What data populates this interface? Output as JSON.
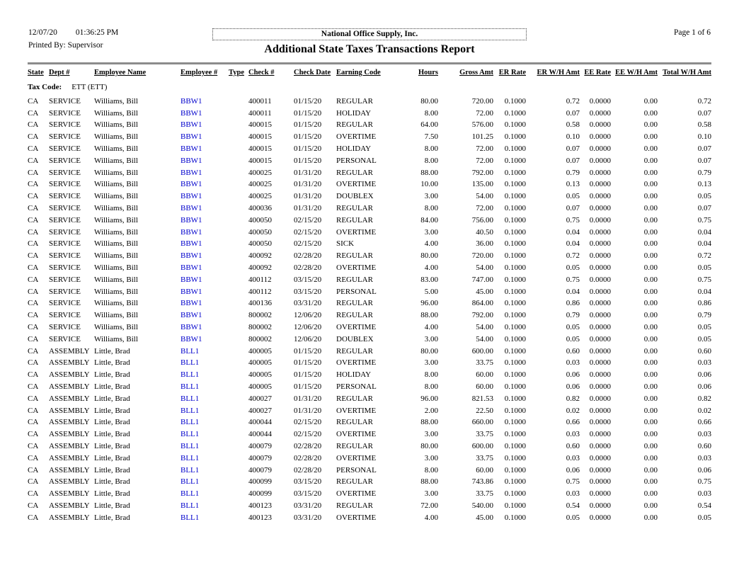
{
  "header": {
    "date": "12/07/20",
    "time": "01:36:25 PM",
    "printed_by_label": "Printed By:",
    "printed_by_value": "Supervisor",
    "company": "National Office Supply, Inc.",
    "title": "Additional State Taxes Transactions Report",
    "page": "Page 1 of 6"
  },
  "colors": {
    "employee_link_blue": "#0000cc",
    "rule_gray": "#8c8c8c"
  },
  "table": {
    "tax_code_label": "Tax Code:",
    "tax_code_value": "ETT (ETT)",
    "columns": [
      "State",
      "Dept #",
      "Employee Name",
      "Employee #",
      "Type",
      "Check #",
      "Check Date",
      "Earning Code",
      "Hours",
      "Gross Amt",
      "ER Rate",
      "ER W/H Amt",
      "EE Rate",
      "EE W/H Amt",
      "Total W/H Amt"
    ],
    "alignments": [
      "l",
      "l",
      "l",
      "l",
      "l",
      "l",
      "l",
      "l",
      "r",
      "r",
      "r",
      "r",
      "r",
      "r",
      "r"
    ],
    "rows": [
      [
        "CA",
        "SERVICE",
        "Williams, Bill",
        "BBW1",
        "",
        "400011",
        "01/15/20",
        "REGULAR",
        "80.00",
        "720.00",
        "0.1000",
        "0.72",
        "0.0000",
        "0.00",
        "0.72"
      ],
      [
        "CA",
        "SERVICE",
        "Williams, Bill",
        "BBW1",
        "",
        "400011",
        "01/15/20",
        "HOLIDAY",
        "8.00",
        "72.00",
        "0.1000",
        "0.07",
        "0.0000",
        "0.00",
        "0.07"
      ],
      [
        "CA",
        "SERVICE",
        "Williams, Bill",
        "BBW1",
        "",
        "400015",
        "01/15/20",
        "REGULAR",
        "64.00",
        "576.00",
        "0.1000",
        "0.58",
        "0.0000",
        "0.00",
        "0.58"
      ],
      [
        "CA",
        "SERVICE",
        "Williams, Bill",
        "BBW1",
        "",
        "400015",
        "01/15/20",
        "OVERTIME",
        "7.50",
        "101.25",
        "0.1000",
        "0.10",
        "0.0000",
        "0.00",
        "0.10"
      ],
      [
        "CA",
        "SERVICE",
        "Williams, Bill",
        "BBW1",
        "",
        "400015",
        "01/15/20",
        "HOLIDAY",
        "8.00",
        "72.00",
        "0.1000",
        "0.07",
        "0.0000",
        "0.00",
        "0.07"
      ],
      [
        "CA",
        "SERVICE",
        "Williams, Bill",
        "BBW1",
        "",
        "400015",
        "01/15/20",
        "PERSONAL",
        "8.00",
        "72.00",
        "0.1000",
        "0.07",
        "0.0000",
        "0.00",
        "0.07"
      ],
      [
        "CA",
        "SERVICE",
        "Williams, Bill",
        "BBW1",
        "",
        "400025",
        "01/31/20",
        "REGULAR",
        "88.00",
        "792.00",
        "0.1000",
        "0.79",
        "0.0000",
        "0.00",
        "0.79"
      ],
      [
        "CA",
        "SERVICE",
        "Williams, Bill",
        "BBW1",
        "",
        "400025",
        "01/31/20",
        "OVERTIME",
        "10.00",
        "135.00",
        "0.1000",
        "0.13",
        "0.0000",
        "0.00",
        "0.13"
      ],
      [
        "CA",
        "SERVICE",
        "Williams, Bill",
        "BBW1",
        "",
        "400025",
        "01/31/20",
        "DOUBLEX",
        "3.00",
        "54.00",
        "0.1000",
        "0.05",
        "0.0000",
        "0.00",
        "0.05"
      ],
      [
        "CA",
        "SERVICE",
        "Williams, Bill",
        "BBW1",
        "",
        "400036",
        "01/31/20",
        "REGULAR",
        "8.00",
        "72.00",
        "0.1000",
        "0.07",
        "0.0000",
        "0.00",
        "0.07"
      ],
      [
        "CA",
        "SERVICE",
        "Williams, Bill",
        "BBW1",
        "",
        "400050",
        "02/15/20",
        "REGULAR",
        "84.00",
        "756.00",
        "0.1000",
        "0.75",
        "0.0000",
        "0.00",
        "0.75"
      ],
      [
        "CA",
        "SERVICE",
        "Williams, Bill",
        "BBW1",
        "",
        "400050",
        "02/15/20",
        "OVERTIME",
        "3.00",
        "40.50",
        "0.1000",
        "0.04",
        "0.0000",
        "0.00",
        "0.04"
      ],
      [
        "CA",
        "SERVICE",
        "Williams, Bill",
        "BBW1",
        "",
        "400050",
        "02/15/20",
        "SICK",
        "4.00",
        "36.00",
        "0.1000",
        "0.04",
        "0.0000",
        "0.00",
        "0.04"
      ],
      [
        "CA",
        "SERVICE",
        "Williams, Bill",
        "BBW1",
        "",
        "400092",
        "02/28/20",
        "REGULAR",
        "80.00",
        "720.00",
        "0.1000",
        "0.72",
        "0.0000",
        "0.00",
        "0.72"
      ],
      [
        "CA",
        "SERVICE",
        "Williams, Bill",
        "BBW1",
        "",
        "400092",
        "02/28/20",
        "OVERTIME",
        "4.00",
        "54.00",
        "0.1000",
        "0.05",
        "0.0000",
        "0.00",
        "0.05"
      ],
      [
        "CA",
        "SERVICE",
        "Williams, Bill",
        "BBW1",
        "",
        "400112",
        "03/15/20",
        "REGULAR",
        "83.00",
        "747.00",
        "0.1000",
        "0.75",
        "0.0000",
        "0.00",
        "0.75"
      ],
      [
        "CA",
        "SERVICE",
        "Williams, Bill",
        "BBW1",
        "",
        "400112",
        "03/15/20",
        "PERSONAL",
        "5.00",
        "45.00",
        "0.1000",
        "0.04",
        "0.0000",
        "0.00",
        "0.04"
      ],
      [
        "CA",
        "SERVICE",
        "Williams, Bill",
        "BBW1",
        "",
        "400136",
        "03/31/20",
        "REGULAR",
        "96.00",
        "864.00",
        "0.1000",
        "0.86",
        "0.0000",
        "0.00",
        "0.86"
      ],
      [
        "CA",
        "SERVICE",
        "Williams, Bill",
        "BBW1",
        "",
        "800002",
        "12/06/20",
        "REGULAR",
        "88.00",
        "792.00",
        "0.1000",
        "0.79",
        "0.0000",
        "0.00",
        "0.79"
      ],
      [
        "CA",
        "SERVICE",
        "Williams, Bill",
        "BBW1",
        "",
        "800002",
        "12/06/20",
        "OVERTIME",
        "4.00",
        "54.00",
        "0.1000",
        "0.05",
        "0.0000",
        "0.00",
        "0.05"
      ],
      [
        "CA",
        "SERVICE",
        "Williams, Bill",
        "BBW1",
        "",
        "800002",
        "12/06/20",
        "DOUBLEX",
        "3.00",
        "54.00",
        "0.1000",
        "0.05",
        "0.0000",
        "0.00",
        "0.05"
      ],
      [
        "CA",
        "ASSEMBLY",
        "Little, Brad",
        "BLL1",
        "",
        "400005",
        "01/15/20",
        "REGULAR",
        "80.00",
        "600.00",
        "0.1000",
        "0.60",
        "0.0000",
        "0.00",
        "0.60"
      ],
      [
        "CA",
        "ASSEMBLY",
        "Little, Brad",
        "BLL1",
        "",
        "400005",
        "01/15/20",
        "OVERTIME",
        "3.00",
        "33.75",
        "0.1000",
        "0.03",
        "0.0000",
        "0.00",
        "0.03"
      ],
      [
        "CA",
        "ASSEMBLY",
        "Little, Brad",
        "BLL1",
        "",
        "400005",
        "01/15/20",
        "HOLIDAY",
        "8.00",
        "60.00",
        "0.1000",
        "0.06",
        "0.0000",
        "0.00",
        "0.06"
      ],
      [
        "CA",
        "ASSEMBLY",
        "Little, Brad",
        "BLL1",
        "",
        "400005",
        "01/15/20",
        "PERSONAL",
        "8.00",
        "60.00",
        "0.1000",
        "0.06",
        "0.0000",
        "0.00",
        "0.06"
      ],
      [
        "CA",
        "ASSEMBLY",
        "Little, Brad",
        "BLL1",
        "",
        "400027",
        "01/31/20",
        "REGULAR",
        "96.00",
        "821.53",
        "0.1000",
        "0.82",
        "0.0000",
        "0.00",
        "0.82"
      ],
      [
        "CA",
        "ASSEMBLY",
        "Little, Brad",
        "BLL1",
        "",
        "400027",
        "01/31/20",
        "OVERTIME",
        "2.00",
        "22.50",
        "0.1000",
        "0.02",
        "0.0000",
        "0.00",
        "0.02"
      ],
      [
        "CA",
        "ASSEMBLY",
        "Little, Brad",
        "BLL1",
        "",
        "400044",
        "02/15/20",
        "REGULAR",
        "88.00",
        "660.00",
        "0.1000",
        "0.66",
        "0.0000",
        "0.00",
        "0.66"
      ],
      [
        "CA",
        "ASSEMBLY",
        "Little, Brad",
        "BLL1",
        "",
        "400044",
        "02/15/20",
        "OVERTIME",
        "3.00",
        "33.75",
        "0.1000",
        "0.03",
        "0.0000",
        "0.00",
        "0.03"
      ],
      [
        "CA",
        "ASSEMBLY",
        "Little, Brad",
        "BLL1",
        "",
        "400079",
        "02/28/20",
        "REGULAR",
        "80.00",
        "600.00",
        "0.1000",
        "0.60",
        "0.0000",
        "0.00",
        "0.60"
      ],
      [
        "CA",
        "ASSEMBLY",
        "Little, Brad",
        "BLL1",
        "",
        "400079",
        "02/28/20",
        "OVERTIME",
        "3.00",
        "33.75",
        "0.1000",
        "0.03",
        "0.0000",
        "0.00",
        "0.03"
      ],
      [
        "CA",
        "ASSEMBLY",
        "Little, Brad",
        "BLL1",
        "",
        "400079",
        "02/28/20",
        "PERSONAL",
        "8.00",
        "60.00",
        "0.1000",
        "0.06",
        "0.0000",
        "0.00",
        "0.06"
      ],
      [
        "CA",
        "ASSEMBLY",
        "Little, Brad",
        "BLL1",
        "",
        "400099",
        "03/15/20",
        "REGULAR",
        "88.00",
        "743.86",
        "0.1000",
        "0.75",
        "0.0000",
        "0.00",
        "0.75"
      ],
      [
        "CA",
        "ASSEMBLY",
        "Little, Brad",
        "BLL1",
        "",
        "400099",
        "03/15/20",
        "OVERTIME",
        "3.00",
        "33.75",
        "0.1000",
        "0.03",
        "0.0000",
        "0.00",
        "0.03"
      ],
      [
        "CA",
        "ASSEMBLY",
        "Little, Brad",
        "BLL1",
        "",
        "400123",
        "03/31/20",
        "REGULAR",
        "72.00",
        "540.00",
        "0.1000",
        "0.54",
        "0.0000",
        "0.00",
        "0.54"
      ],
      [
        "CA",
        "ASSEMBLY",
        "Little, Brad",
        "BLL1",
        "",
        "400123",
        "03/31/20",
        "OVERTIME",
        "4.00",
        "45.00",
        "0.1000",
        "0.05",
        "0.0000",
        "0.00",
        "0.05"
      ]
    ]
  }
}
